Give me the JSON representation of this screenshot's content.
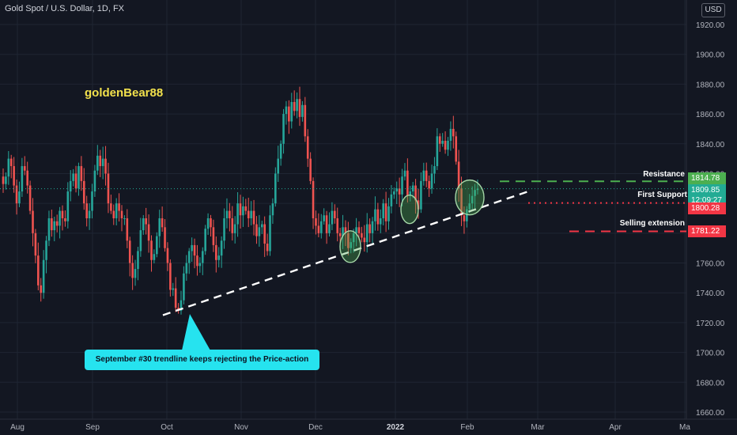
{
  "header": {
    "symbol_title": "Gold Spot / U.S. Dollar, 1D, FX",
    "currency": "USD"
  },
  "author": "goldenBear88",
  "callout": "September #30 trendline keeps rejecting the Price-action",
  "levels": {
    "resistance": {
      "label": "Resistance",
      "price": "1814.78",
      "color": "#4caf50"
    },
    "first_support": {
      "label": "First Support",
      "price": "1800.28",
      "color": "#f23645"
    },
    "selling_extension": {
      "label": "Selling extension",
      "price": "1781.22",
      "color": "#f23645"
    },
    "current": {
      "price": "1809.85",
      "countdown": "12:09:27",
      "color": "#22ab94"
    }
  },
  "chart_data": {
    "type": "candlestick",
    "title": "Gold Spot / U.S. Dollar, 1D, FX",
    "x_ticks": [
      "Aug",
      "Sep",
      "Oct",
      "Nov",
      "Dec",
      "2022",
      "Feb",
      "Mar",
      "Apr",
      "Ma"
    ],
    "y_ticks": [
      1660,
      1680,
      1700,
      1720,
      1740,
      1760,
      1780,
      1800,
      1820,
      1840,
      1860,
      1880,
      1900,
      1920
    ],
    "ylim": [
      1655,
      1930
    ],
    "colors": {
      "up": "#26a69a",
      "down": "#ef5350"
    },
    "closes": [
      1813,
      1818,
      1830,
      1825,
      1812,
      1800,
      1808,
      1825,
      1822,
      1812,
      1795,
      1780,
      1765,
      1745,
      1740,
      1762,
      1775,
      1790,
      1782,
      1788,
      1785,
      1795,
      1790,
      1788,
      1808,
      1815,
      1820,
      1810,
      1825,
      1815,
      1800,
      1790,
      1795,
      1808,
      1822,
      1832,
      1825,
      1830,
      1820,
      1800,
      1795,
      1790,
      1800,
      1795,
      1790,
      1790,
      1775,
      1760,
      1750,
      1756,
      1768,
      1782,
      1790,
      1786,
      1775,
      1762,
      1766,
      1778,
      1790,
      1784,
      1770,
      1760,
      1742,
      1743,
      1730,
      1728,
      1735,
      1753,
      1760,
      1768,
      1772,
      1765,
      1758,
      1760,
      1768,
      1783,
      1790,
      1784,
      1772,
      1762,
      1765,
      1775,
      1790,
      1795,
      1790,
      1780,
      1786,
      1800,
      1792,
      1798,
      1795,
      1790,
      1795,
      1786,
      1778,
      1784,
      1786,
      1773,
      1768,
      1792,
      1800,
      1820,
      1830,
      1840,
      1860,
      1865,
      1855,
      1868,
      1862,
      1870,
      1858,
      1866,
      1845,
      1830,
      1815,
      1790,
      1785,
      1780,
      1788,
      1792,
      1780,
      1786,
      1795,
      1790,
      1780,
      1778,
      1784,
      1780,
      1770,
      1774,
      1780,
      1784,
      1780,
      1777,
      1774,
      1786,
      1780,
      1788,
      1796,
      1786,
      1790,
      1800,
      1788,
      1798,
      1806,
      1808,
      1810,
      1806,
      1818,
      1822,
      1805,
      1808,
      1812,
      1802,
      1796,
      1815,
      1822,
      1815,
      1810,
      1820,
      1825,
      1845,
      1840,
      1842,
      1836,
      1842,
      1850,
      1845,
      1828,
      1810,
      1792,
      1788,
      1796,
      1800,
      1805,
      1809,
      1809.85
    ],
    "trendline": {
      "from": [
        "2021-09-30",
        1725
      ],
      "to": [
        "2022-02-10",
        1808
      ]
    }
  }
}
